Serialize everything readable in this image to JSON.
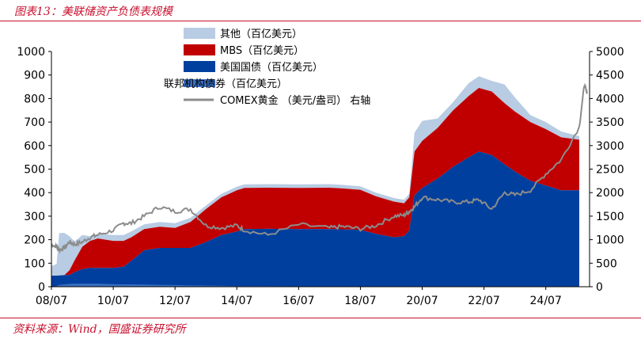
{
  "header": {
    "title": "图表13：美联储资产负债表规模"
  },
  "footer": {
    "source": "资料来源：Wind，国盛证券研究所"
  },
  "chart_data": {
    "type": "area",
    "title": "图表13：美联储资产负债表规模",
    "categories": [
      "08/07",
      "10/07",
      "12/07",
      "14/07",
      "16/07",
      "18/07",
      "20/07",
      "22/07",
      "24/07"
    ],
    "x": [
      "2008-07",
      "2008-09",
      "2008-10",
      "2008-12",
      "2009-02",
      "2009-04",
      "2009-07",
      "2009-10",
      "2010-01",
      "2010-07",
      "2010-11",
      "2011-02",
      "2011-07",
      "2012-01",
      "2012-07",
      "2013-01",
      "2013-07",
      "2014-01",
      "2014-07",
      "2014-10",
      "2015-07",
      "2016-07",
      "2017-07",
      "2017-12",
      "2018-07",
      "2019-01",
      "2019-08",
      "2019-12",
      "2020-02",
      "2020-04",
      "2020-07",
      "2021-01",
      "2021-07",
      "2022-01",
      "2022-05",
      "2022-10",
      "2023-03",
      "2023-07",
      "2024-01",
      "2024-07",
      "2025-01",
      "2025-08"
    ],
    "series": [
      {
        "name": "美国国债（百亿美元）",
        "color": "#003f9e",
        "values": [
          47,
          47,
          48,
          49,
          50,
          62,
          75,
          80,
          80,
          80,
          85,
          110,
          155,
          165,
          165,
          165,
          190,
          220,
          235,
          245,
          246,
          245,
          245,
          244,
          242,
          225,
          210,
          215,
          240,
          390,
          420,
          460,
          510,
          550,
          575,
          560,
          520,
          490,
          450,
          430,
          410,
          410
        ]
      },
      {
        "name": "MBS（百亿美元）",
        "color": "#c00000",
        "values": [
          0,
          0,
          0,
          0,
          20,
          50,
          95,
          115,
          125,
          115,
          110,
          100,
          90,
          90,
          85,
          110,
          140,
          160,
          175,
          175,
          175,
          175,
          176,
          174,
          170,
          160,
          152,
          140,
          140,
          185,
          200,
          215,
          240,
          260,
          270,
          270,
          260,
          255,
          250,
          240,
          225,
          215
        ]
      },
      {
        "name": "其他（百亿美元）",
        "color": "#b8cce4",
        "values": [
          40,
          50,
          180,
          180,
          145,
          80,
          50,
          20,
          20,
          25,
          25,
          25,
          20,
          20,
          20,
          18,
          15,
          15,
          15,
          15,
          15,
          15,
          15,
          15,
          15,
          15,
          15,
          15,
          15,
          80,
          85,
          40,
          35,
          55,
          50,
          45,
          80,
          60,
          30,
          30,
          25,
          15
        ]
      },
      {
        "name": "联邦机构债券（百亿美元）",
        "color": "#3a6fc1",
        "values": [
          1,
          3,
          8,
          10,
          12,
          13,
          13,
          13,
          13,
          11,
          10,
          10,
          9,
          8,
          7,
          6,
          5,
          4,
          3,
          3,
          3,
          2,
          2,
          2,
          2,
          2,
          2,
          2,
          2,
          2,
          2,
          2,
          2,
          2,
          2,
          2,
          2,
          2,
          2,
          2,
          2,
          2
        ]
      },
      {
        "name": "COMEX黄金 （美元/盎司） 右轴",
        "color": "#8c8c8c",
        "axis": "right",
        "values": [
          900,
          850,
          780,
          830,
          950,
          900,
          950,
          1050,
          1100,
          1200,
          1350,
          1350,
          1500,
          1700,
          1600,
          1650,
          1300,
          1250,
          1300,
          1200,
          1100,
          1320,
          1250,
          1280,
          1230,
          1300,
          1500,
          1520,
          1600,
          1700,
          1900,
          1850,
          1800,
          1800,
          1850,
          1650,
          2000,
          1950,
          2050,
          2400,
          2700,
          3400
        ]
      }
    ],
    "gold_extra": {
      "x": [
        "2025-10",
        "2025-11"
      ],
      "values": [
        4300,
        4100
      ]
    },
    "left_axis": {
      "ylim": [
        0,
        1000
      ],
      "ticks": [
        "0",
        "100",
        "200",
        "300",
        "400",
        "500",
        "600",
        "700",
        "800",
        "900",
        "1000"
      ]
    },
    "right_axis": {
      "ylim": [
        0,
        5000
      ],
      "ticks": [
        "0",
        "500",
        "1000",
        "1500",
        "2000",
        "2500",
        "3000",
        "3500",
        "4000",
        "4500",
        "5000"
      ]
    },
    "grid": false,
    "legend": "top-left"
  }
}
